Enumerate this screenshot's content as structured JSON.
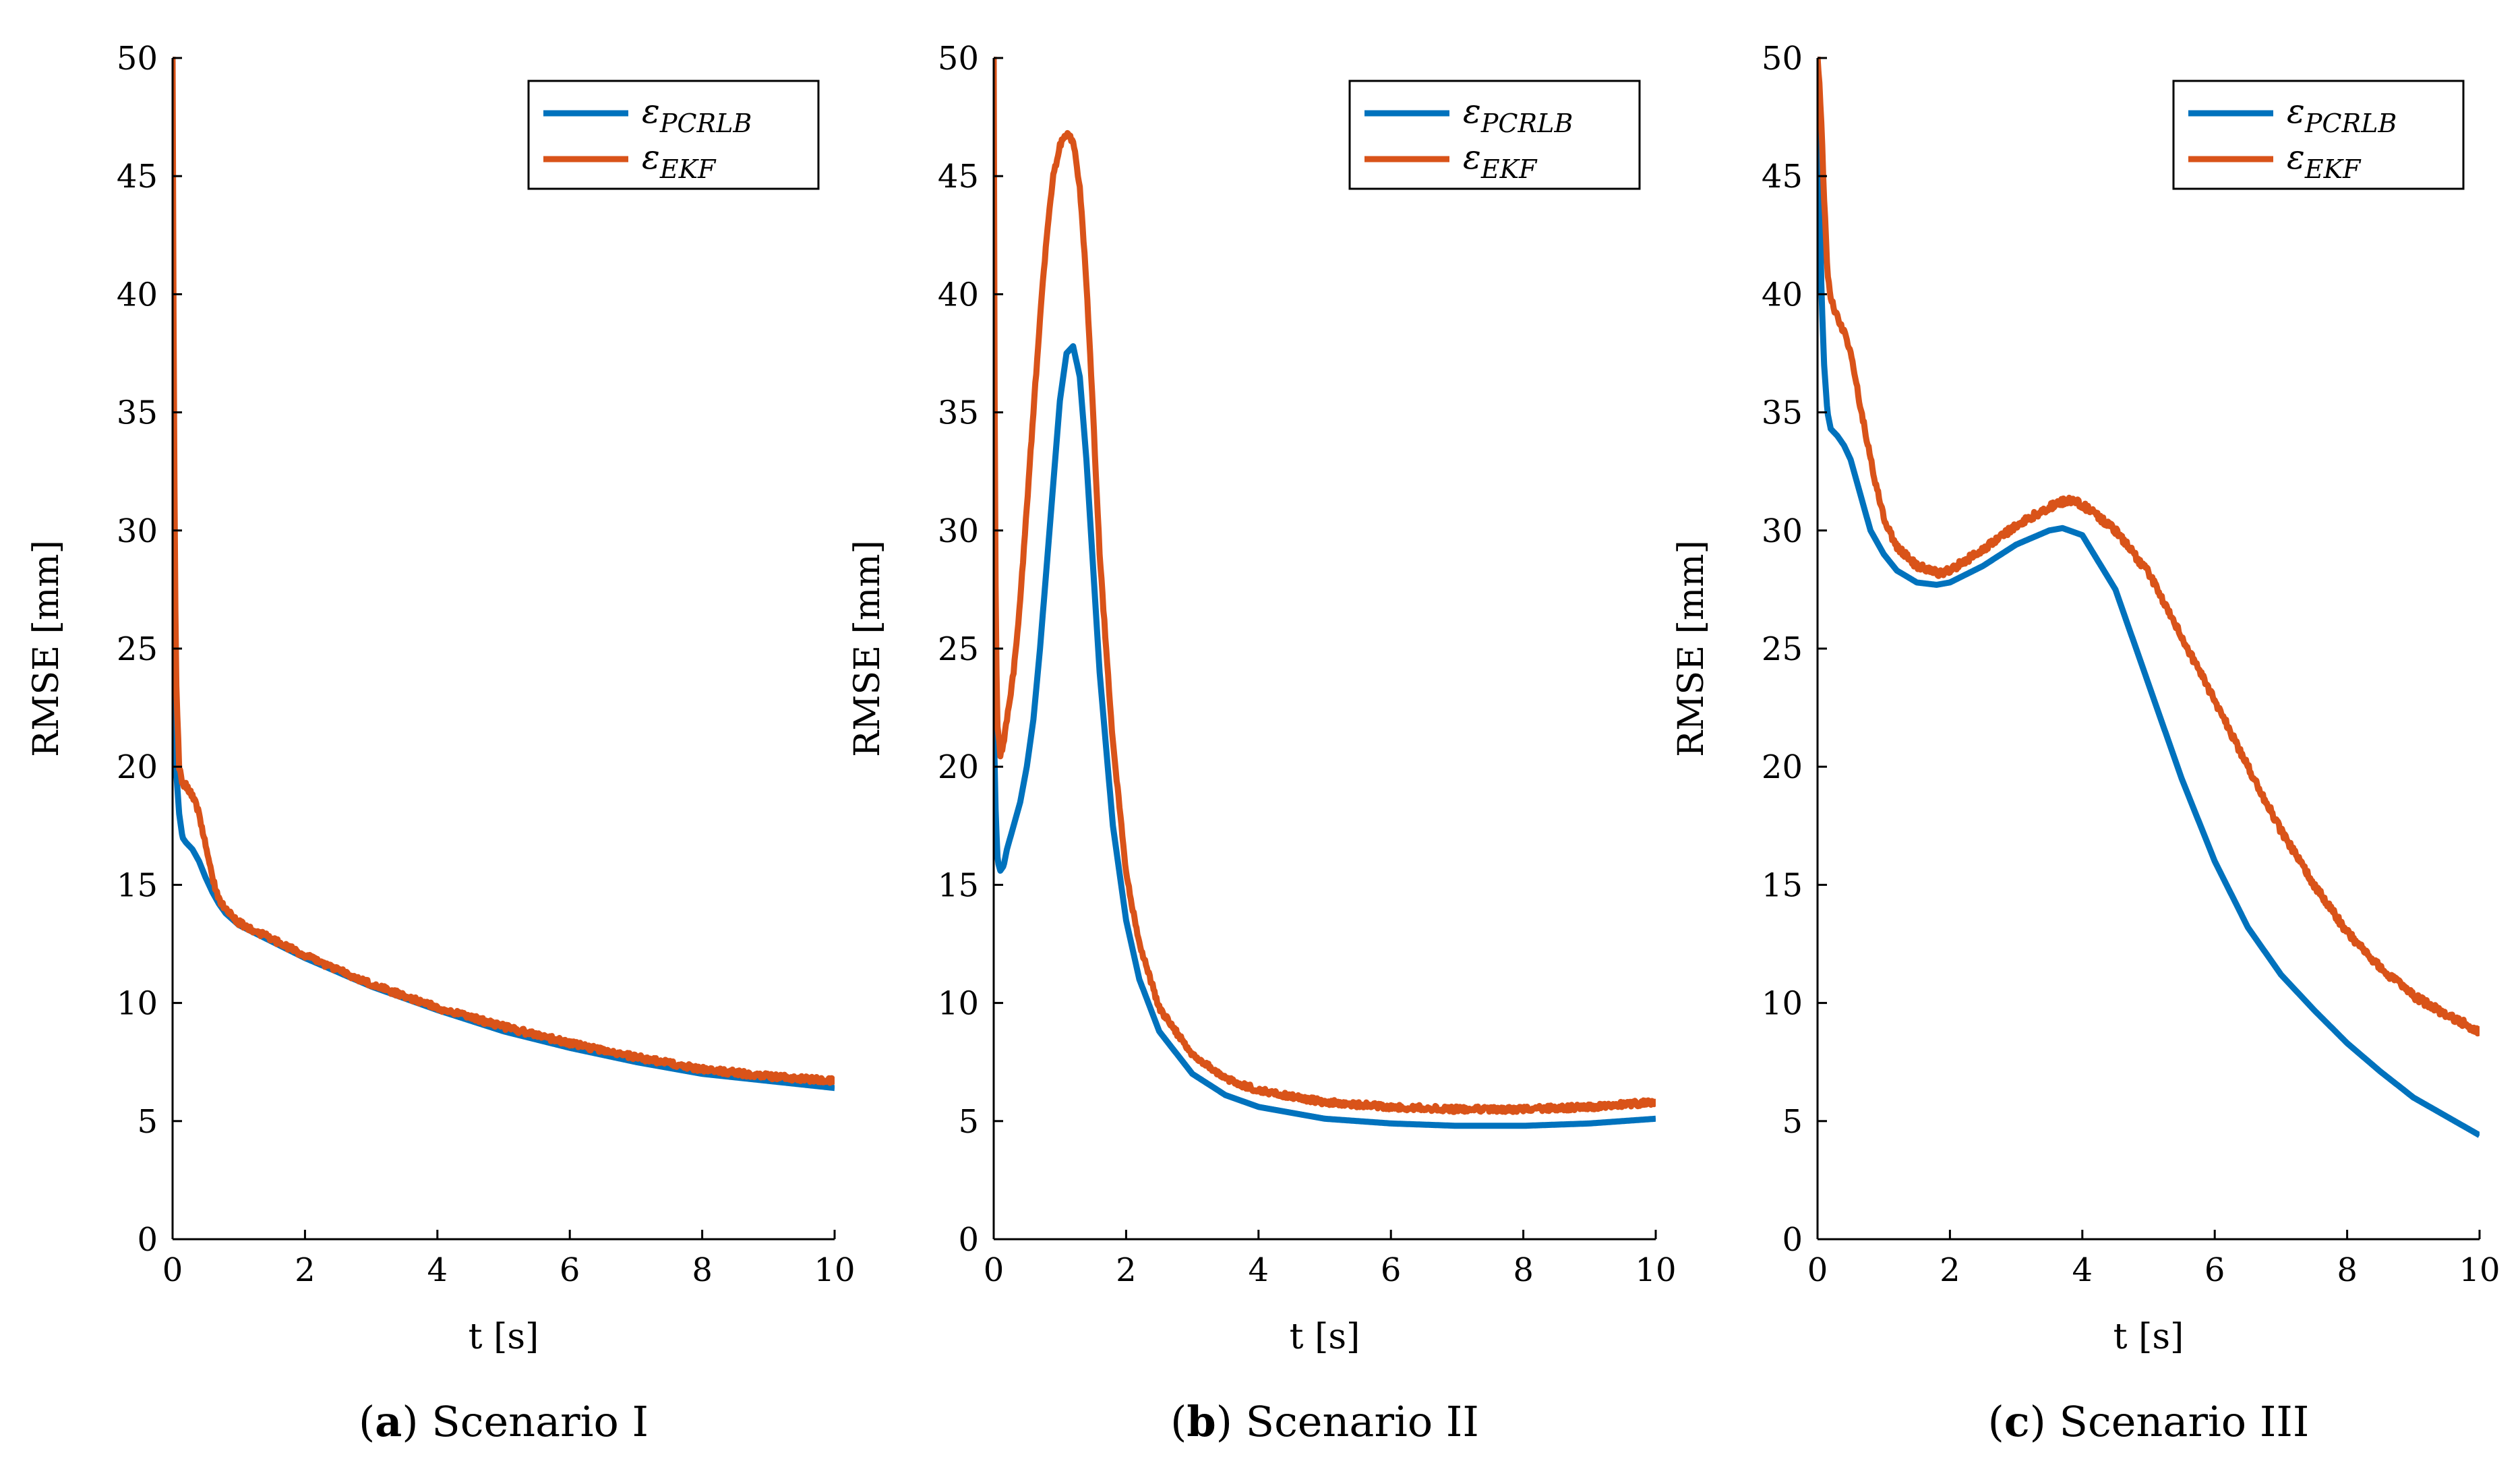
{
  "chart_data": [
    {
      "type": "line",
      "panel_tag": "a",
      "caption": "Scenario I",
      "xlabel": "t [s]",
      "ylabel": "RMSE [mm]",
      "xlim": [
        0,
        10
      ],
      "ylim": [
        0,
        50
      ],
      "xticks": [
        0,
        2,
        4,
        6,
        8,
        10
      ],
      "yticks": [
        0,
        5,
        10,
        15,
        20,
        25,
        30,
        35,
        40,
        45,
        50
      ],
      "legend_position": "top-right",
      "series": [
        {
          "name": "ε_PCRLB",
          "legend_symbol": "ε",
          "legend_subscript": "PCRLB",
          "color": "#0072BD",
          "x": [
            0,
            0.02,
            0.05,
            0.1,
            0.15,
            0.2,
            0.3,
            0.4,
            0.5,
            0.6,
            0.7,
            0.8,
            1,
            1.5,
            2,
            3,
            4,
            5,
            6,
            7,
            8,
            9,
            10
          ],
          "y": [
            40,
            25,
            20,
            18,
            17,
            16.8,
            16.5,
            16,
            15.3,
            14.7,
            14.2,
            13.8,
            13.3,
            12.6,
            11.9,
            10.7,
            9.7,
            8.8,
            8.1,
            7.5,
            7,
            6.7,
            6.4
          ]
        },
        {
          "name": "ε_EKF",
          "legend_symbol": "ε",
          "legend_subscript": "EKF",
          "color": "#D95319",
          "noise": 0.12,
          "x": [
            0,
            0.02,
            0.05,
            0.1,
            0.15,
            0.2,
            0.3,
            0.4,
            0.5,
            0.6,
            0.7,
            0.8,
            1,
            1.5,
            2,
            3,
            4,
            5,
            6,
            7,
            8,
            9,
            10
          ],
          "y": [
            50,
            35,
            24,
            20,
            19.3,
            19.2,
            18.8,
            18,
            16.7,
            15.3,
            14.4,
            14,
            13.4,
            12.7,
            12,
            10.8,
            9.8,
            9,
            8.3,
            7.7,
            7.2,
            6.9,
            6.7
          ]
        }
      ]
    },
    {
      "type": "line",
      "panel_tag": "b",
      "caption": "Scenario II",
      "xlabel": "t [s]",
      "ylabel": "RMSE [mm]",
      "xlim": [
        0,
        10
      ],
      "ylim": [
        0,
        50
      ],
      "xticks": [
        0,
        2,
        4,
        6,
        8,
        10
      ],
      "yticks": [
        0,
        5,
        10,
        15,
        20,
        25,
        30,
        35,
        40,
        45,
        50
      ],
      "legend_position": "top-right",
      "series": [
        {
          "name": "ε_PCRLB",
          "legend_symbol": "ε",
          "legend_subscript": "PCRLB",
          "color": "#0072BD",
          "x": [
            0,
            0.03,
            0.06,
            0.1,
            0.15,
            0.2,
            0.3,
            0.4,
            0.5,
            0.6,
            0.7,
            0.8,
            0.9,
            1.0,
            1.1,
            1.2,
            1.3,
            1.4,
            1.5,
            1.6,
            1.8,
            2.0,
            2.2,
            2.5,
            3,
            3.5,
            4,
            5,
            6,
            7,
            8,
            9,
            10
          ],
          "y": [
            22,
            18,
            16,
            15.6,
            15.8,
            16.5,
            17.5,
            18.5,
            20,
            22,
            25,
            28.5,
            32,
            35.5,
            37.5,
            37.8,
            36.5,
            33,
            28.5,
            24,
            17.5,
            13.5,
            11,
            8.8,
            7,
            6.1,
            5.6,
            5.1,
            4.9,
            4.8,
            4.8,
            4.9,
            5.1
          ]
        },
        {
          "name": "ε_EKF",
          "legend_symbol": "ε",
          "legend_subscript": "EKF",
          "color": "#D95319",
          "noise": 0.12,
          "x": [
            0,
            0.02,
            0.05,
            0.1,
            0.15,
            0.2,
            0.3,
            0.4,
            0.5,
            0.6,
            0.7,
            0.8,
            0.9,
            1.0,
            1.1,
            1.2,
            1.3,
            1.4,
            1.5,
            1.6,
            1.8,
            2.0,
            2.2,
            2.5,
            3,
            3.5,
            4,
            5,
            6,
            7,
            8,
            9,
            10
          ],
          "y": [
            50,
            30,
            22,
            20.5,
            21,
            22,
            24,
            27,
            31,
            35,
            39,
            42.5,
            45,
            46.3,
            46.8,
            46.5,
            44.5,
            40.5,
            35,
            29,
            21,
            15.5,
            12.5,
            9.8,
            7.8,
            6.8,
            6.3,
            5.8,
            5.6,
            5.5,
            5.5,
            5.6,
            5.8
          ]
        }
      ]
    },
    {
      "type": "line",
      "panel_tag": "c",
      "caption": "Scenario III",
      "xlabel": "t [s]",
      "ylabel": "RMSE [mm]",
      "xlim": [
        0,
        10
      ],
      "ylim": [
        0,
        50
      ],
      "xticks": [
        0,
        2,
        4,
        6,
        8,
        10
      ],
      "yticks": [
        0,
        5,
        10,
        15,
        20,
        25,
        30,
        35,
        40,
        45,
        50
      ],
      "legend_position": "top-right",
      "series": [
        {
          "name": "ε_PCRLB",
          "legend_symbol": "ε",
          "legend_subscript": "PCRLB",
          "color": "#0072BD",
          "x": [
            0,
            0.03,
            0.06,
            0.1,
            0.15,
            0.2,
            0.3,
            0.4,
            0.5,
            0.6,
            0.7,
            0.8,
            1.0,
            1.2,
            1.5,
            1.8,
            2.0,
            2.5,
            3.0,
            3.5,
            3.7,
            4.0,
            4.5,
            5.0,
            5.5,
            6.0,
            6.5,
            7.0,
            7.2,
            7.5,
            8,
            8.5,
            9,
            9.5,
            10
          ],
          "y": [
            50,
            45,
            40,
            37,
            35,
            34.3,
            34,
            33.6,
            33,
            32,
            31,
            30,
            29,
            28.3,
            27.8,
            27.7,
            27.8,
            28.5,
            29.4,
            30,
            30.1,
            29.8,
            27.5,
            23.5,
            19.5,
            16,
            13.2,
            11.2,
            10.6,
            9.7,
            8.3,
            7.1,
            6,
            5.2,
            4.4
          ]
        },
        {
          "name": "ε_EKF",
          "legend_symbol": "ε",
          "legend_subscript": "EKF",
          "color": "#D95319",
          "noise": 0.15,
          "x": [
            0,
            0.03,
            0.06,
            0.1,
            0.15,
            0.2,
            0.3,
            0.4,
            0.5,
            0.6,
            0.7,
            0.8,
            1.0,
            1.2,
            1.5,
            1.8,
            2.0,
            2.5,
            3.0,
            3.5,
            3.8,
            4.0,
            4.5,
            5.0,
            5.5,
            6.0,
            6.5,
            7.0,
            7.5,
            8,
            8.5,
            9,
            9.5,
            10
          ],
          "y": [
            50,
            49,
            47,
            44,
            41,
            39.8,
            39,
            38.4,
            37.5,
            36,
            34.5,
            33,
            30.5,
            29.3,
            28.5,
            28.2,
            28.3,
            29.2,
            30.2,
            31,
            31.3,
            31.1,
            30,
            28.2,
            25.5,
            22.8,
            20,
            17.3,
            15,
            13,
            11.5,
            10.3,
            9.5,
            8.8
          ]
        }
      ]
    }
  ]
}
